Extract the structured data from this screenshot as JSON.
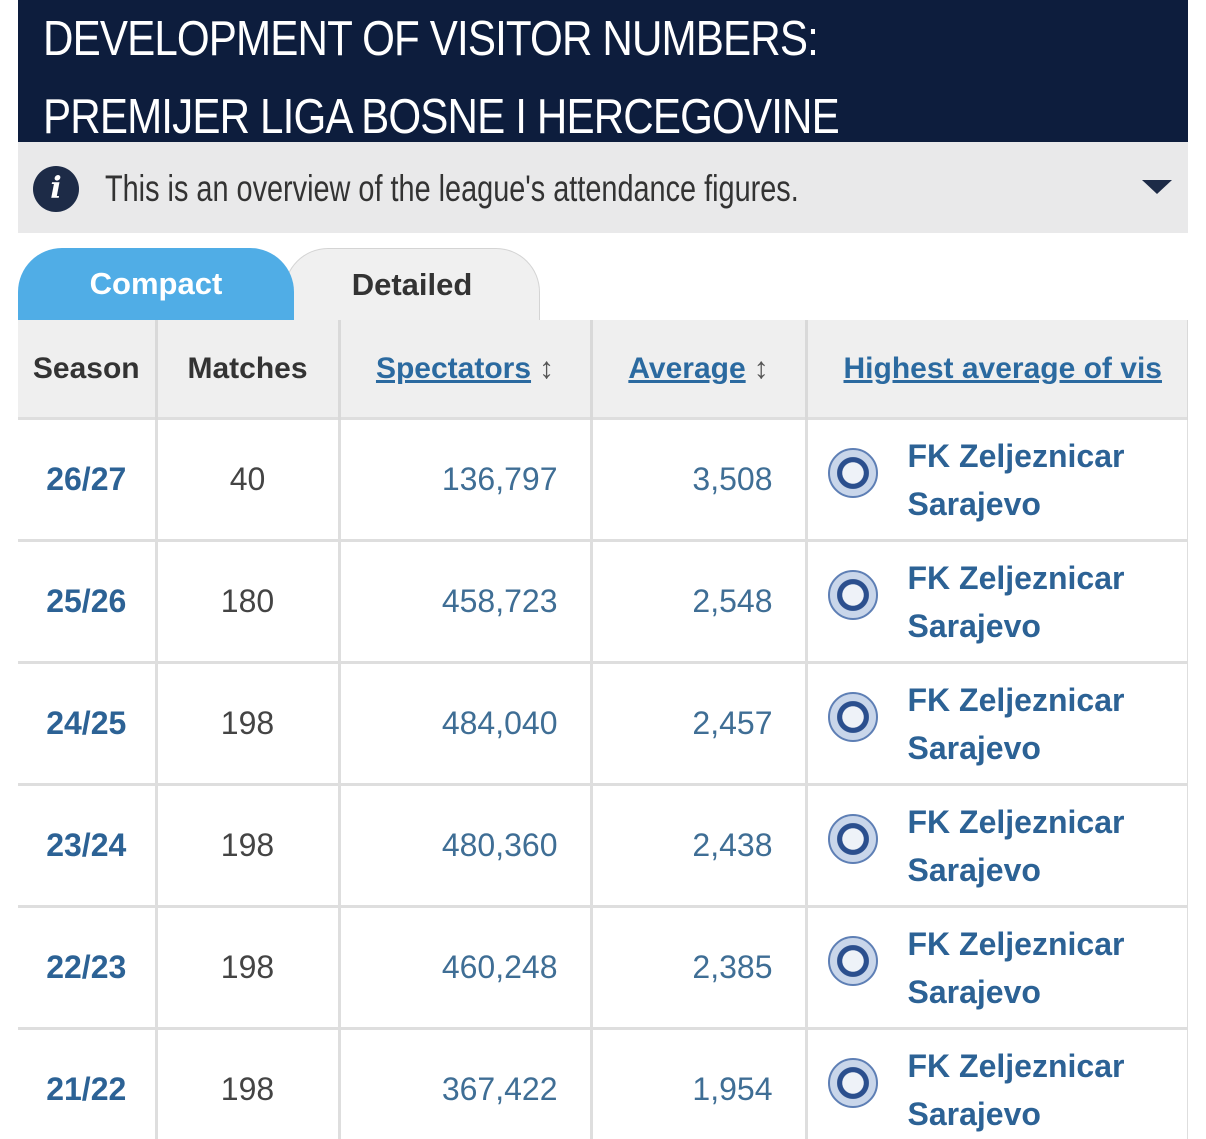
{
  "header": {
    "title": "DEVELOPMENT OF VISITOR NUMBERS: PREMIJER LIGA BOSNE I HERCEGOVINE"
  },
  "info": {
    "icon": "info-icon",
    "text": "This is an overview of the league's attendance figures.",
    "toggle_icon": "caret-down-icon"
  },
  "tabs": [
    {
      "label": "Compact",
      "active": true
    },
    {
      "label": "Detailed",
      "active": false
    }
  ],
  "table": {
    "headers": {
      "season": "Season",
      "matches": "Matches",
      "spectators": "Spectators",
      "average": "Average",
      "highest": "Highest average of vis",
      "sort_icon": "↕"
    },
    "rows": [
      {
        "season": "26/27",
        "matches": "40",
        "spectators": "136,797",
        "average": "3,508",
        "club_line1": "FK Zeljeznicar",
        "club_line2": "Sarajevo"
      },
      {
        "season": "25/26",
        "matches": "180",
        "spectators": "458,723",
        "average": "2,548",
        "club_line1": "FK Zeljeznicar",
        "club_line2": "Sarajevo"
      },
      {
        "season": "24/25",
        "matches": "198",
        "spectators": "484,040",
        "average": "2,457",
        "club_line1": "FK Zeljeznicar",
        "club_line2": "Sarajevo"
      },
      {
        "season": "23/24",
        "matches": "198",
        "spectators": "480,360",
        "average": "2,438",
        "club_line1": "FK Zeljeznicar",
        "club_line2": "Sarajevo"
      },
      {
        "season": "22/23",
        "matches": "198",
        "spectators": "460,248",
        "average": "2,385",
        "club_line1": "FK Zeljeznicar",
        "club_line2": "Sarajevo"
      },
      {
        "season": "21/22",
        "matches": "198",
        "spectators": "367,422",
        "average": "1,954",
        "club_line1": "FK Zeljeznicar",
        "club_line2": "Sarajevo"
      }
    ]
  },
  "colors": {
    "header_bg": "#0d1d3d",
    "active_tab": "#50ade6",
    "link": "#2c6295"
  }
}
